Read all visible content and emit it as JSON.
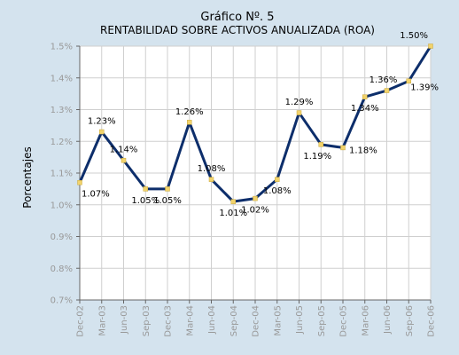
{
  "chart_data": {
    "type": "line",
    "title": "Gráfico Nº. 5",
    "subtitle": "RENTABILIDAD SOBRE ACTIVOS ANUALIZADA (ROA)",
    "ylabel": "Porcentajes",
    "xlabel": "",
    "ylim": [
      0.7,
      1.5
    ],
    "y_ticks": [
      "0.7%",
      "0.8%",
      "0.9%",
      "1.0%",
      "1.1%",
      "1.2%",
      "1.3%",
      "1.4%",
      "1.5%"
    ],
    "grid": true,
    "legend": "none",
    "categories": [
      "Dec-02",
      "Mar-03",
      "Jun-03",
      "Sep-03",
      "Dec-03",
      "Mar-04",
      "Jun-04",
      "Sep-04",
      "Dec-04",
      "Mar-05",
      "Jun-05",
      "Sep-05",
      "Dec-05",
      "Mar-06",
      "Jun-06",
      "Sep-06",
      "Dec-06"
    ],
    "series": [
      {
        "values": [
          1.07,
          1.23,
          1.14,
          1.05,
          1.05,
          1.26,
          1.08,
          1.01,
          1.02,
          1.08,
          1.29,
          1.19,
          1.18,
          1.34,
          1.36,
          1.39,
          1.5
        ],
        "data_labels": [
          "1.07%",
          "1.23%",
          "1.14%",
          "1.05%",
          "1.05%",
          "1.26%",
          "1.08%",
          "1.01%",
          "1.02%",
          "1.08%",
          "1.29%",
          "1.19%",
          "1.18%",
          "1.34%",
          "1.36%",
          "1.39%",
          "1.50%"
        ]
      }
    ],
    "colors": {
      "line": "#0d2e6b",
      "marker": "#f2d36b",
      "plot_bg": "#ffffff",
      "page_bg": "#d4e3ee",
      "grid": "#cfcfcf",
      "tick_text": "#999999"
    }
  }
}
